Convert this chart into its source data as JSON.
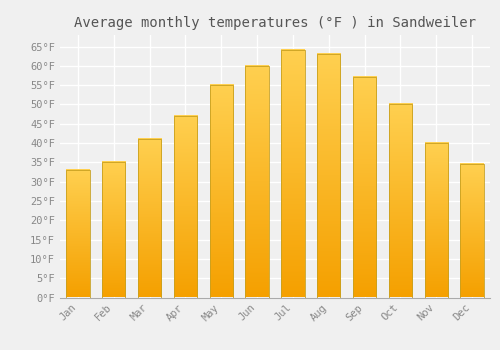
{
  "title": "Average monthly temperatures (°F ) in Sandweiler",
  "months": [
    "Jan",
    "Feb",
    "Mar",
    "Apr",
    "May",
    "Jun",
    "Jul",
    "Aug",
    "Sep",
    "Oct",
    "Nov",
    "Dec"
  ],
  "values": [
    33,
    35,
    41,
    47,
    55,
    60,
    64,
    63,
    57,
    50,
    40,
    34.5
  ],
  "bar_color_top": "#FFD050",
  "bar_color_bottom": "#F5A000",
  "bar_edge_color": "#C8A020",
  "ylim": [
    0,
    68
  ],
  "yticks": [
    0,
    5,
    10,
    15,
    20,
    25,
    30,
    35,
    40,
    45,
    50,
    55,
    60,
    65
  ],
  "ytick_labels": [
    "0°F",
    "5°F",
    "10°F",
    "15°F",
    "20°F",
    "25°F",
    "30°F",
    "35°F",
    "40°F",
    "45°F",
    "50°F",
    "55°F",
    "60°F",
    "65°F"
  ],
  "background_color": "#f0f0f0",
  "grid_color": "#ffffff",
  "title_fontsize": 10,
  "tick_fontsize": 7.5,
  "bar_width": 0.65
}
